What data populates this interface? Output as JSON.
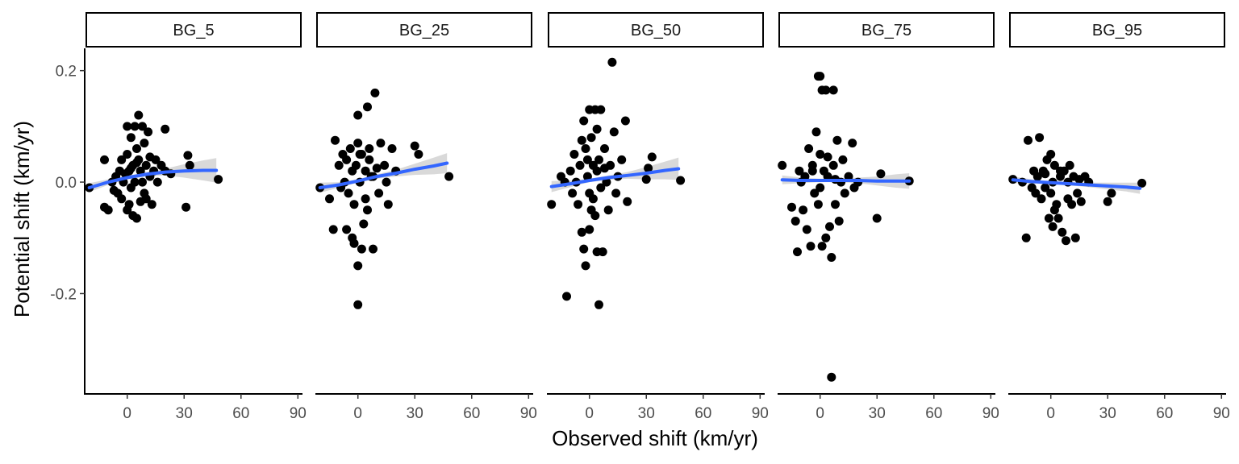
{
  "chart_data": {
    "type": "scatter",
    "layout": "facet_wrap",
    "xlabel": "Observed shift (km/yr)",
    "ylabel": "Potential shift (km/yr)",
    "xlim": [
      -22,
      92
    ],
    "ylim": [
      -0.38,
      0.24
    ],
    "x_ticks": [
      0,
      30,
      60,
      90
    ],
    "y_ticks": [
      0.2,
      0.0,
      -0.2
    ],
    "y_tick_labels": [
      "0.2",
      "0.0",
      "-0.2"
    ],
    "grid": false,
    "colors": {
      "points": "#000000",
      "smooth_line": "#3366FF",
      "ribbon": "#bfbfbf"
    },
    "panels": [
      {
        "name": "BG_5",
        "smooth": {
          "x": [
            -20,
            -10,
            0,
            10,
            20,
            30,
            40,
            47
          ],
          "y": [
            -0.01,
            0.0,
            0.008,
            0.014,
            0.018,
            0.02,
            0.021,
            0.021
          ]
        },
        "ribbon_halfwidth": [
          0.008,
          0.005,
          0.003,
          0.004,
          0.006,
          0.012,
          0.018,
          0.022
        ],
        "points": [
          [
            -20,
            -0.01
          ],
          [
            -12,
            -0.045
          ],
          [
            -10,
            -0.05
          ],
          [
            -8,
            0.0
          ],
          [
            -6,
            0.01
          ],
          [
            -5,
            -0.02
          ],
          [
            -4,
            0.02
          ],
          [
            -3,
            -0.03
          ],
          [
            -2,
            0.0
          ],
          [
            -1,
            0.015
          ],
          [
            0,
            -0.05
          ],
          [
            0,
            0.05
          ],
          [
            0,
            0.1
          ],
          [
            1,
            0.02
          ],
          [
            1,
            -0.04
          ],
          [
            2,
            0.08
          ],
          [
            2,
            -0.01
          ],
          [
            3,
            0.03
          ],
          [
            3,
            -0.06
          ],
          [
            4,
            0.1
          ],
          [
            4,
            0.0
          ],
          [
            5,
            -0.065
          ],
          [
            5,
            0.06
          ],
          [
            6,
            0.12
          ],
          [
            6,
            0.04
          ],
          [
            7,
            0.02
          ],
          [
            7,
            -0.035
          ],
          [
            8,
            0.1
          ],
          [
            8,
            0.0
          ],
          [
            9,
            0.07
          ],
          [
            10,
            0.03
          ],
          [
            10,
            -0.03
          ],
          [
            11,
            0.09
          ],
          [
            12,
            0.01
          ],
          [
            13,
            -0.04
          ],
          [
            14,
            0.02
          ],
          [
            15,
            0.04
          ],
          [
            16,
            0.0
          ],
          [
            18,
            0.03
          ],
          [
            20,
            0.095
          ],
          [
            20,
            0.02
          ],
          [
            23,
            0.015
          ],
          [
            -12,
            0.04
          ],
          [
            -7,
            -0.015
          ],
          [
            -3,
            0.04
          ],
          [
            2,
            0.025
          ],
          [
            5,
            0.035
          ],
          [
            9,
            -0.02
          ],
          [
            12,
            0.045
          ],
          [
            32,
            0.048
          ],
          [
            33,
            0.03
          ],
          [
            31,
            -0.045
          ],
          [
            48,
            0.005
          ]
        ]
      },
      {
        "name": "BG_25",
        "smooth": {
          "x": [
            -20,
            -10,
            0,
            10,
            20,
            30,
            40,
            47
          ],
          "y": [
            -0.01,
            -0.005,
            0.002,
            0.01,
            0.016,
            0.023,
            0.029,
            0.034
          ]
        },
        "ribbon_halfwidth": [
          0.009,
          0.005,
          0.003,
          0.004,
          0.006,
          0.01,
          0.015,
          0.018
        ],
        "points": [
          [
            -20,
            -0.01
          ],
          [
            -15,
            -0.03
          ],
          [
            -13,
            -0.085
          ],
          [
            -12,
            0.075
          ],
          [
            -10,
            0.03
          ],
          [
            -9,
            -0.01
          ],
          [
            -8,
            0.05
          ],
          [
            -7,
            0.0
          ],
          [
            -6,
            0.04
          ],
          [
            -5,
            -0.02
          ],
          [
            -4,
            0.06
          ],
          [
            -3,
            0.02
          ],
          [
            -2,
            -0.04
          ],
          [
            -2,
            -0.11
          ],
          [
            -1,
            0.03
          ],
          [
            0,
            0.07
          ],
          [
            0,
            -0.15
          ],
          [
            0,
            -0.22
          ],
          [
            0,
            0.12
          ],
          [
            1,
            0.0
          ],
          [
            1,
            0.05
          ],
          [
            2,
            -0.12
          ],
          [
            3,
            -0.075
          ],
          [
            4,
            0.02
          ],
          [
            5,
            0.135
          ],
          [
            5,
            -0.05
          ],
          [
            6,
            0.04
          ],
          [
            7,
            0.01
          ],
          [
            8,
            -0.12
          ],
          [
            9,
            0.16
          ],
          [
            10,
            0.025
          ],
          [
            11,
            -0.02
          ],
          [
            12,
            0.07
          ],
          [
            14,
            0.03
          ],
          [
            15,
            0.0
          ],
          [
            16,
            -0.04
          ],
          [
            18,
            0.06
          ],
          [
            20,
            0.02
          ],
          [
            -6,
            -0.085
          ],
          [
            -3,
            -0.1
          ],
          [
            2,
            0.05
          ],
          [
            4,
            -0.03
          ],
          [
            6,
            0.06
          ],
          [
            8,
            0.01
          ],
          [
            30,
            0.065
          ],
          [
            32,
            0.05
          ],
          [
            48,
            0.01
          ]
        ]
      },
      {
        "name": "BG_50",
        "smooth": {
          "x": [
            -20,
            -10,
            0,
            10,
            20,
            30,
            40,
            47
          ],
          "y": [
            -0.008,
            -0.003,
            0.003,
            0.008,
            0.012,
            0.016,
            0.021,
            0.024
          ]
        },
        "ribbon_halfwidth": [
          0.01,
          0.006,
          0.003,
          0.004,
          0.006,
          0.011,
          0.016,
          0.02
        ],
        "points": [
          [
            -20,
            -0.04
          ],
          [
            -15,
            0.01
          ],
          [
            -13,
            0.0
          ],
          [
            -12,
            -0.205
          ],
          [
            -10,
            0.02
          ],
          [
            -9,
            -0.02
          ],
          [
            -8,
            0.05
          ],
          [
            -7,
            0.0
          ],
          [
            -6,
            -0.04
          ],
          [
            -5,
            0.03
          ],
          [
            -4,
            -0.09
          ],
          [
            -3,
            -0.12
          ],
          [
            -3,
            0.11
          ],
          [
            -2,
            -0.15
          ],
          [
            -2,
            0.06
          ],
          [
            -1,
            0.01
          ],
          [
            0,
            0.13
          ],
          [
            0,
            -0.02
          ],
          [
            0,
            -0.085
          ],
          [
            1,
            0.08
          ],
          [
            1,
            -0.05
          ],
          [
            2,
            0.03
          ],
          [
            3,
            -0.06
          ],
          [
            3,
            0.13
          ],
          [
            4,
            -0.125
          ],
          [
            4,
            0.02
          ],
          [
            5,
            -0.22
          ],
          [
            5,
            0.04
          ],
          [
            6,
            0.13
          ],
          [
            6,
            -0.01
          ],
          [
            7,
            -0.125
          ],
          [
            8,
            0.06
          ],
          [
            9,
            0.0
          ],
          [
            10,
            -0.05
          ],
          [
            11,
            0.03
          ],
          [
            12,
            0.215
          ],
          [
            13,
            0.09
          ],
          [
            14,
            -0.02
          ],
          [
            15,
            0.01
          ],
          [
            17,
            0.04
          ],
          [
            19,
            0.11
          ],
          [
            20,
            -0.035
          ],
          [
            -4,
            0.075
          ],
          [
            -1,
            0.04
          ],
          [
            2,
            -0.03
          ],
          [
            4,
            0.095
          ],
          [
            8,
            0.025
          ],
          [
            30,
            0.005
          ],
          [
            33,
            0.045
          ],
          [
            31,
            0.025
          ],
          [
            48,
            0.003
          ]
        ]
      },
      {
        "name": "BG_75",
        "smooth": {
          "x": [
            -20,
            -10,
            0,
            10,
            20,
            30,
            40,
            47
          ],
          "y": [
            0.004,
            0.003,
            0.003,
            0.003,
            0.003,
            0.002,
            0.002,
            0.002
          ]
        },
        "ribbon_halfwidth": [
          0.008,
          0.005,
          0.003,
          0.003,
          0.005,
          0.008,
          0.012,
          0.014
        ],
        "points": [
          [
            -20,
            0.03
          ],
          [
            -15,
            -0.045
          ],
          [
            -13,
            -0.07
          ],
          [
            -12,
            -0.125
          ],
          [
            -11,
            0.02
          ],
          [
            -10,
            0.0
          ],
          [
            -9,
            -0.05
          ],
          [
            -8,
            0.01
          ],
          [
            -7,
            -0.085
          ],
          [
            -6,
            0.06
          ],
          [
            -5,
            -0.115
          ],
          [
            -4,
            0.03
          ],
          [
            -3,
            -0.02
          ],
          [
            -2,
            0.09
          ],
          [
            -1,
            0.19
          ],
          [
            -1,
            -0.04
          ],
          [
            0,
            0.19
          ],
          [
            0,
            0.05
          ],
          [
            1,
            0.165
          ],
          [
            1,
            -0.115
          ],
          [
            2,
            0.02
          ],
          [
            3,
            0.165
          ],
          [
            3,
            -0.1
          ],
          [
            4,
            0.01
          ],
          [
            5,
            -0.08
          ],
          [
            6,
            -0.135
          ],
          [
            6,
            -0.35
          ],
          [
            7,
            0.165
          ],
          [
            7,
            0.03
          ],
          [
            8,
            -0.04
          ],
          [
            9,
            0.075
          ],
          [
            10,
            -0.07
          ],
          [
            11,
            0.0
          ],
          [
            12,
            0.04
          ],
          [
            13,
            -0.02
          ],
          [
            15,
            0.01
          ],
          [
            17,
            0.07
          ],
          [
            18,
            -0.01
          ],
          [
            20,
            0.0
          ],
          [
            -4,
            0.02
          ],
          [
            0,
            -0.01
          ],
          [
            4,
            0.045
          ],
          [
            8,
            0.005
          ],
          [
            30,
            -0.065
          ],
          [
            32,
            0.015
          ],
          [
            47,
            0.002
          ]
        ]
      },
      {
        "name": "BG_95",
        "smooth": {
          "x": [
            -20,
            -10,
            0,
            10,
            20,
            30,
            40,
            47
          ],
          "y": [
            0.004,
            0.001,
            -0.001,
            -0.003,
            -0.005,
            -0.007,
            -0.009,
            -0.011
          ]
        },
        "ribbon_halfwidth": [
          0.006,
          0.004,
          0.002,
          0.003,
          0.004,
          0.006,
          0.008,
          0.01
        ],
        "points": [
          [
            -20,
            0.005
          ],
          [
            -15,
            0.0
          ],
          [
            -13,
            -0.1
          ],
          [
            -12,
            0.075
          ],
          [
            -10,
            -0.01
          ],
          [
            -9,
            0.02
          ],
          [
            -8,
            -0.02
          ],
          [
            -7,
            0.01
          ],
          [
            -6,
            0.08
          ],
          [
            -5,
            -0.03
          ],
          [
            -4,
            0.02
          ],
          [
            -3,
            -0.01
          ],
          [
            -2,
            0.04
          ],
          [
            -1,
            -0.065
          ],
          [
            0,
            0.05
          ],
          [
            0,
            -0.02
          ],
          [
            1,
            0.0
          ],
          [
            1,
            -0.08
          ],
          [
            2,
            0.03
          ],
          [
            3,
            -0.04
          ],
          [
            4,
            -0.065
          ],
          [
            5,
            0.01
          ],
          [
            6,
            -0.09
          ],
          [
            7,
            0.02
          ],
          [
            8,
            -0.105
          ],
          [
            9,
            0.0
          ],
          [
            10,
            0.03
          ],
          [
            11,
            -0.04
          ],
          [
            12,
            0.01
          ],
          [
            13,
            -0.1
          ],
          [
            14,
            -0.02
          ],
          [
            15,
            0.005
          ],
          [
            16,
            -0.035
          ],
          [
            18,
            0.01
          ],
          [
            20,
            0.0
          ],
          [
            -3,
            0.015
          ],
          [
            2,
            -0.05
          ],
          [
            5,
            0.02
          ],
          [
            9,
            -0.03
          ],
          [
            30,
            -0.035
          ],
          [
            32,
            -0.02
          ],
          [
            48,
            -0.002
          ]
        ]
      }
    ]
  }
}
